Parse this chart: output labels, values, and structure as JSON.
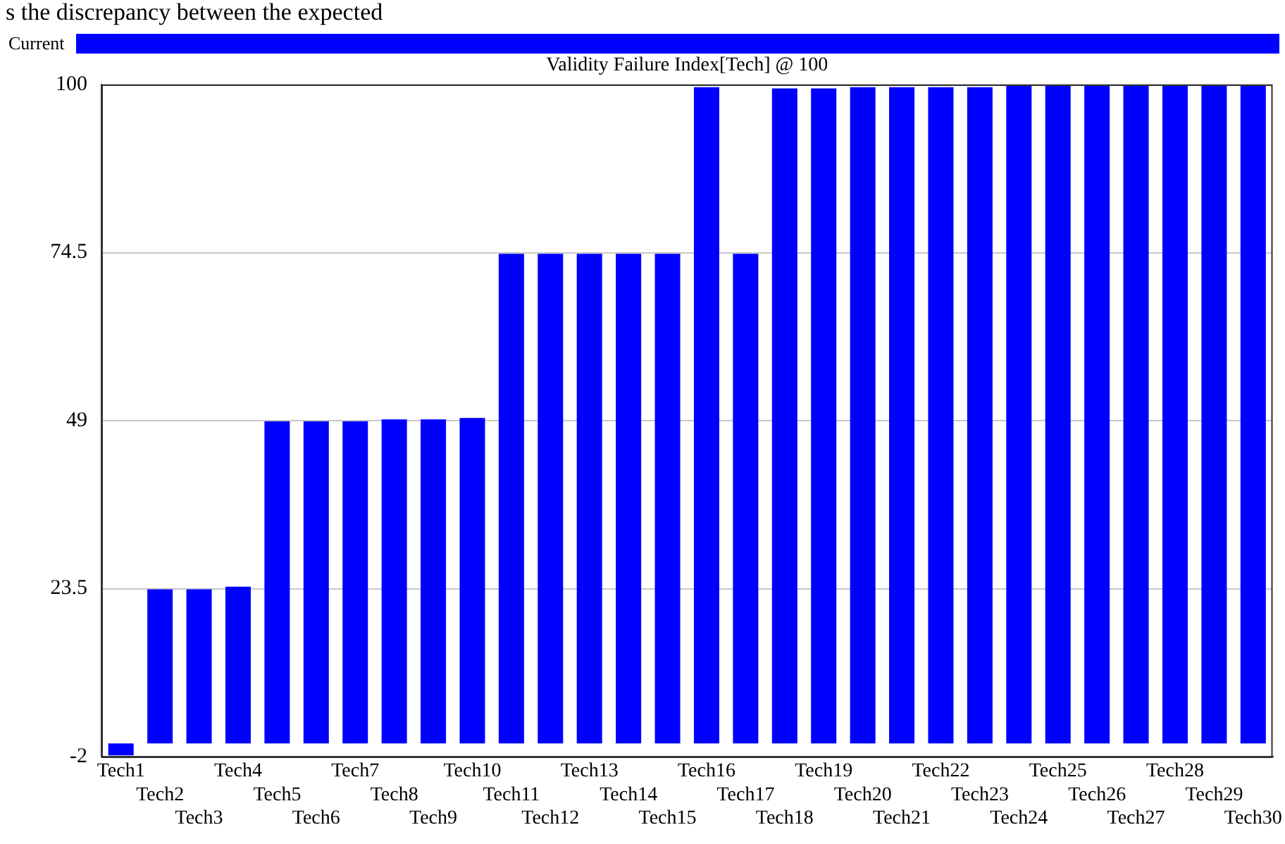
{
  "chart_data": {
    "type": "bar",
    "title": "Validity Failure Index[Tech] @ 100",
    "annotations": [
      "s the discrepancy between the expected"
    ],
    "categories": [
      "Tech1",
      "Tech2",
      "Tech3",
      "Tech4",
      "Tech5",
      "Tech6",
      "Tech7",
      "Tech8",
      "Tech9",
      "Tech10",
      "Tech11",
      "Tech12",
      "Tech13",
      "Tech14",
      "Tech15",
      "Tech16",
      "Tech17",
      "Tech18",
      "Tech19",
      "Tech20",
      "Tech21",
      "Tech22",
      "Tech23",
      "Tech24",
      "Tech25",
      "Tech26",
      "Tech27",
      "Tech28",
      "Tech29",
      "Tech30"
    ],
    "series": [
      {
        "name": "Current",
        "color": "#0000ff",
        "values": [
          -1.8,
          23.4,
          23.4,
          23.8,
          48.9,
          48.9,
          48.9,
          49.2,
          49.2,
          49.4,
          74.3,
          74.3,
          74.3,
          74.3,
          74.3,
          99.6,
          74.3,
          99.4,
          99.4,
          99.6,
          99.6,
          99.6,
          99.6,
          99.9,
          99.9,
          99.9,
          99.9,
          99.9,
          99.9,
          99.9
        ]
      }
    ],
    "ylim": [
      -2,
      100
    ],
    "yticks": [
      -2,
      23.5,
      49,
      74.5,
      100
    ],
    "grid": "y",
    "legend": "top"
  }
}
